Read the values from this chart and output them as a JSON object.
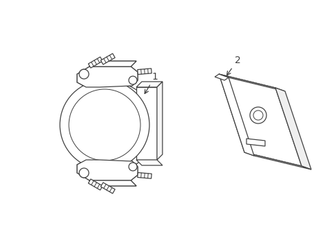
{
  "background_color": "#ffffff",
  "line_color": "#404040",
  "line_width": 0.9,
  "fig_width": 4.89,
  "fig_height": 3.6,
  "dpi": 100,
  "label1": "1",
  "label2": "2"
}
